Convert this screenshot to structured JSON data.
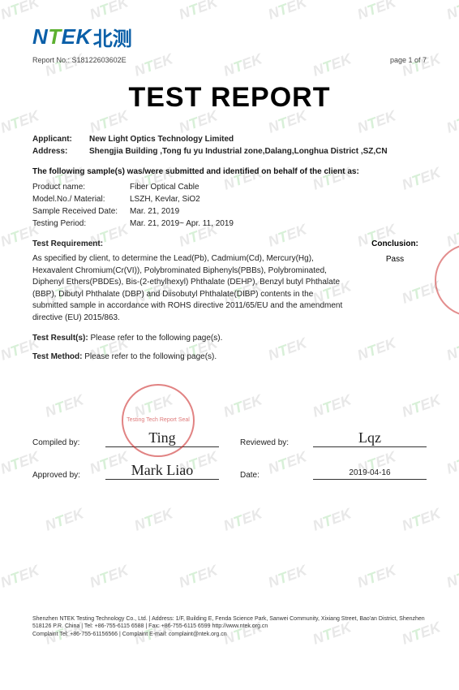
{
  "header": {
    "logo_n": "N",
    "logo_t": "T",
    "logo_ek": "EK",
    "logo_cn": "北测",
    "report_no_label": "Report No.:",
    "report_no": "S18122603602E",
    "page_label": "page 1 of 7"
  },
  "title": "TEST REPORT",
  "applicant": {
    "label": "Applicant:",
    "value": "New Light Optics Technology Limited"
  },
  "address": {
    "label": "Address:",
    "value": "Shengjia Building ,Tong fu yu Industrial zone,Dalang,Longhua District ,SZ,CN"
  },
  "sample_intro": "The following sample(s) was/were submitted and identified on behalf of the client as:",
  "samples": {
    "product_name_l": "Product name:",
    "product_name_v": "Fiber Optical Cable",
    "model_l": "Model.No./ Material:",
    "model_v": "LSZH, Kevlar, SiO2",
    "received_l": "Sample Received Date:",
    "received_v": "Mar. 21, 2019",
    "period_l": "Testing Period:",
    "period_v": "Mar. 21, 2019~ Apr. 11, 2019"
  },
  "requirement": {
    "title": "Test Requirement:",
    "body": "As specified by client, to determine the Lead(Pb), Cadmium(Cd), Mercury(Hg), Hexavalent Chromium(Cr(VI)), Polybrominated Biphenyls(PBBs), Polybrominated, Diphenyl Ethers(PBDEs), Bis-(2-ethylhexyl) Phthalate (DEHP), Benzyl butyl Phthalate (BBP), Dibutyl Phthalate (DBP) and Diisobutyl Phthalate(DIBP) contents in the submitted sample in accordance with ROHS directive 2011/65/EU and the amendment directive (EU) 2015/863."
  },
  "conclusion": {
    "title": "Conclusion:",
    "value": "Pass"
  },
  "results": {
    "label": "Test Result(s):",
    "text": "Please refer to the following page(s)."
  },
  "method": {
    "label": "Test Method:",
    "text": "Please refer to the following page(s)."
  },
  "signatures": {
    "compiled_l": "Compiled by:",
    "compiled_v": "Ting",
    "reviewed_l": "Reviewed by:",
    "reviewed_v": "Lqz",
    "approved_l": "Approved by:",
    "approved_v": "Mark Liao",
    "date_l": "Date:",
    "date_v": "2019-04-16"
  },
  "stamp_text": "Testing Tech\nReport Seal",
  "footer": {
    "line1": "Shenzhen NTEK Testing Technology Co., Ltd. | Address: 1/F, Building E, Fenda Science Park, Sanwei Community, Xixiang Street, Bao'an District, Shenzhen 518126 P.R. China | Tel: +86-755-6115 6588 | Fax: +86-755-6115 6599  http://www.ntek.org.cn",
    "line2": "Complaint Tel: +86-755-61156566 | Complaint E-mail: complaint@ntek.org.cn"
  },
  "watermark": "NTEK",
  "colors": {
    "brand_blue": "#0a5fa8",
    "brand_green": "#5cb030",
    "text": "#222222",
    "stamp": "rgba(200,30,30,0.55)",
    "wm_gray": "#e8e8e8"
  }
}
